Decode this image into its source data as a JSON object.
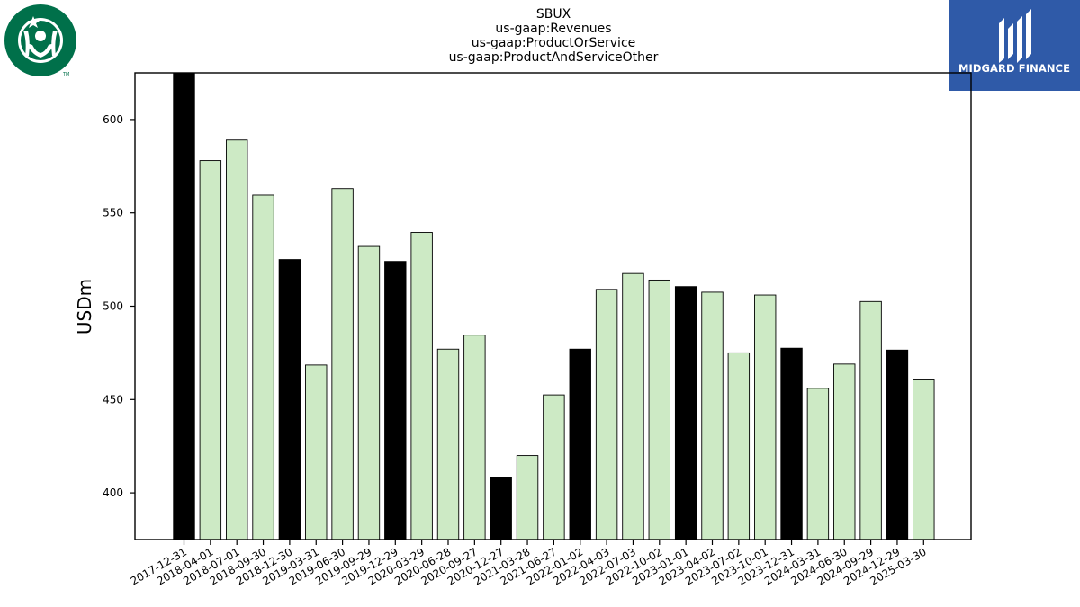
{
  "logos": {
    "left_icon": "starbucks-siren-logo",
    "left_mark": "TM",
    "left_color": "#00704a",
    "right_icon": "midgard-finance-logo",
    "right_text": "MIDGARD FINANCE",
    "right_color": "#2f5aa8"
  },
  "chart_data": {
    "type": "bar",
    "title": [
      "SBUX",
      "us-gaap:Revenues",
      "us-gaap:ProductOrService",
      "us-gaap:ProductAndServiceOther"
    ],
    "xlabel": "",
    "ylabel": "USDm",
    "ylim": [
      375,
      625
    ],
    "yticks": [
      400,
      450,
      500,
      550,
      600
    ],
    "grid": false,
    "colors": {
      "q1": "#000000",
      "other": "#cdeac5",
      "edge": "#000000"
    },
    "categories": [
      "2017-12-31",
      "2018-04-01",
      "2018-07-01",
      "2018-09-30",
      "2018-12-30",
      "2019-03-31",
      "2019-06-30",
      "2019-09-29",
      "2019-12-29",
      "2020-03-29",
      "2020-06-28",
      "2020-09-27",
      "2020-12-27",
      "2021-03-28",
      "2021-06-27",
      "2022-01-02",
      "2022-04-03",
      "2022-07-03",
      "2022-10-02",
      "2023-01-01",
      "2023-04-02",
      "2023-07-02",
      "2023-10-01",
      "2023-12-31",
      "2024-03-31",
      "2024-06-30",
      "2024-09-29",
      "2024-12-29",
      "2025-03-30"
    ],
    "values": [
      626,
      578,
      589,
      559.5,
      525,
      468.5,
      563,
      532,
      524,
      539.5,
      477,
      484.5,
      408.5,
      420,
      452.5,
      477,
      509,
      517.5,
      514,
      510.5,
      507.5,
      475,
      506,
      477.5,
      456,
      469,
      502.5,
      476.5,
      460.5
    ],
    "highlight": [
      true,
      false,
      false,
      false,
      true,
      false,
      false,
      false,
      true,
      false,
      false,
      false,
      true,
      false,
      false,
      true,
      false,
      false,
      false,
      true,
      false,
      false,
      false,
      true,
      false,
      false,
      false,
      true,
      false
    ]
  }
}
